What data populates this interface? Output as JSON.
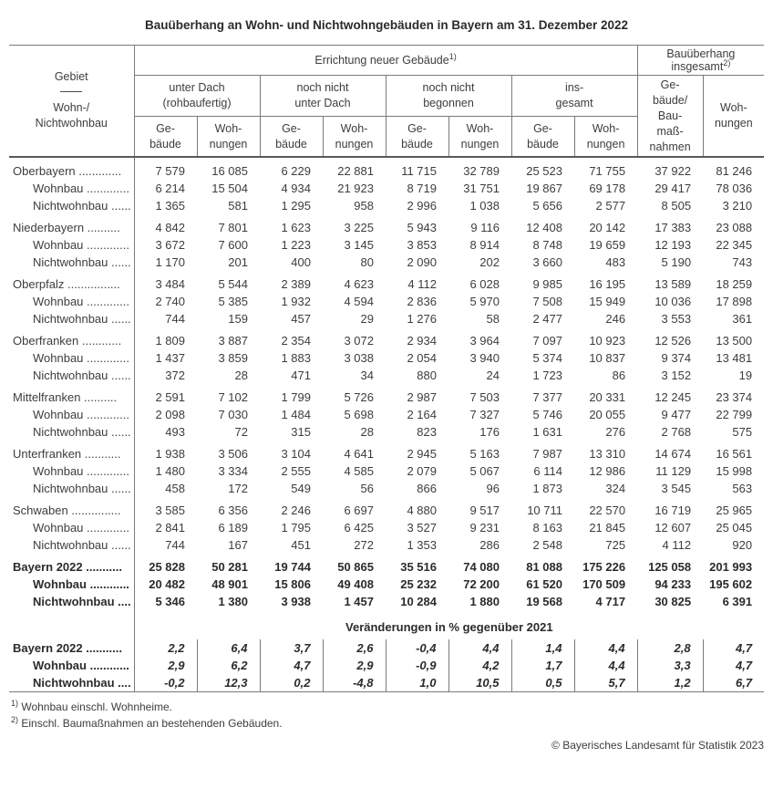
{
  "title": "Bauüberhang an Wohn- und Nichtwohngebäuden in Bayern am 31. Dezember 2022",
  "header": {
    "gebiet": "Gebiet",
    "gebiet_sub": "Wohn-/\nNichtwohnbau",
    "errichtung": "Errichtung neuer Gebäude",
    "fn1": "1)",
    "bau_line1": "Bauüberhang",
    "bau_line2": "insgesamt",
    "fn2": "2)",
    "subgroups": [
      "unter Dach\n(rohbaufertig)",
      "noch nicht\nunter Dach",
      "noch nicht\nbegonnen",
      "ins-\ngesamt"
    ],
    "col_gebaeude": "Ge-\nbäude",
    "col_wohnungen": "Woh-\nnungen",
    "col_gebaeude_baumassnahmen": "Ge-\nbäude/\nBau-\nmaß-\nnahmen"
  },
  "table": {
    "rows": [
      {
        "label": "Oberbayern .............",
        "indent": false,
        "bold": false,
        "gap": true,
        "values": [
          "7 579",
          "16 085",
          "6 229",
          "22 881",
          "11 715",
          "32 789",
          "25 523",
          "71 755",
          "37 922",
          "81 246"
        ]
      },
      {
        "label": "Wohnbau .............",
        "indent": true,
        "bold": false,
        "gap": false,
        "values": [
          "6 214",
          "15 504",
          "4 934",
          "21 923",
          "8 719",
          "31 751",
          "19 867",
          "69 178",
          "29 417",
          "78 036"
        ]
      },
      {
        "label": "Nichtwohnbau ......",
        "indent": true,
        "bold": false,
        "gap": false,
        "values": [
          "1 365",
          "581",
          "1 295",
          "958",
          "2 996",
          "1 038",
          "5 656",
          "2 577",
          "8 505",
          "3 210"
        ]
      },
      {
        "label": "Niederbayern ..........",
        "indent": false,
        "bold": false,
        "gap": true,
        "values": [
          "4 842",
          "7 801",
          "1 623",
          "3 225",
          "5 943",
          "9 116",
          "12 408",
          "20 142",
          "17 383",
          "23 088"
        ]
      },
      {
        "label": "Wohnbau .............",
        "indent": true,
        "bold": false,
        "gap": false,
        "values": [
          "3 672",
          "7 600",
          "1 223",
          "3 145",
          "3 853",
          "8 914",
          "8 748",
          "19 659",
          "12 193",
          "22 345"
        ]
      },
      {
        "label": "Nichtwohnbau ......",
        "indent": true,
        "bold": false,
        "gap": false,
        "values": [
          "1 170",
          "201",
          "400",
          "80",
          "2 090",
          "202",
          "3 660",
          "483",
          "5 190",
          "743"
        ]
      },
      {
        "label": "Oberpfalz ................",
        "indent": false,
        "bold": false,
        "gap": true,
        "values": [
          "3 484",
          "5 544",
          "2 389",
          "4 623",
          "4 112",
          "6 028",
          "9 985",
          "16 195",
          "13 589",
          "18 259"
        ]
      },
      {
        "label": "Wohnbau .............",
        "indent": true,
        "bold": false,
        "gap": false,
        "values": [
          "2 740",
          "5 385",
          "1 932",
          "4 594",
          "2 836",
          "5 970",
          "7 508",
          "15 949",
          "10 036",
          "17 898"
        ]
      },
      {
        "label": "Nichtwohnbau ......",
        "indent": true,
        "bold": false,
        "gap": false,
        "values": [
          "744",
          "159",
          "457",
          "29",
          "1 276",
          "58",
          "2 477",
          "246",
          "3 553",
          "361"
        ]
      },
      {
        "label": "Oberfranken ............",
        "indent": false,
        "bold": false,
        "gap": true,
        "values": [
          "1 809",
          "3 887",
          "2 354",
          "3 072",
          "2 934",
          "3 964",
          "7 097",
          "10 923",
          "12 526",
          "13 500"
        ]
      },
      {
        "label": "Wohnbau .............",
        "indent": true,
        "bold": false,
        "gap": false,
        "values": [
          "1 437",
          "3 859",
          "1 883",
          "3 038",
          "2 054",
          "3 940",
          "5 374",
          "10 837",
          "9 374",
          "13 481"
        ]
      },
      {
        "label": "Nichtwohnbau ......",
        "indent": true,
        "bold": false,
        "gap": false,
        "values": [
          "372",
          "28",
          "471",
          "34",
          "880",
          "24",
          "1 723",
          "86",
          "3 152",
          "19"
        ]
      },
      {
        "label": "Mittelfranken ..........",
        "indent": false,
        "bold": false,
        "gap": true,
        "values": [
          "2 591",
          "7 102",
          "1 799",
          "5 726",
          "2 987",
          "7 503",
          "7 377",
          "20 331",
          "12 245",
          "23 374"
        ]
      },
      {
        "label": "Wohnbau .............",
        "indent": true,
        "bold": false,
        "gap": false,
        "values": [
          "2 098",
          "7 030",
          "1 484",
          "5 698",
          "2 164",
          "7 327",
          "5 746",
          "20 055",
          "9 477",
          "22 799"
        ]
      },
      {
        "label": "Nichtwohnbau ......",
        "indent": true,
        "bold": false,
        "gap": false,
        "values": [
          "493",
          "72",
          "315",
          "28",
          "823",
          "176",
          "1 631",
          "276",
          "2 768",
          "575"
        ]
      },
      {
        "label": "Unterfranken ...........",
        "indent": false,
        "bold": false,
        "gap": true,
        "values": [
          "1 938",
          "3 506",
          "3 104",
          "4 641",
          "2 945",
          "5 163",
          "7 987",
          "13 310",
          "14 674",
          "16 561"
        ]
      },
      {
        "label": "Wohnbau .............",
        "indent": true,
        "bold": false,
        "gap": false,
        "values": [
          "1 480",
          "3 334",
          "2 555",
          "4 585",
          "2 079",
          "5 067",
          "6 114",
          "12 986",
          "11 129",
          "15 998"
        ]
      },
      {
        "label": "Nichtwohnbau ......",
        "indent": true,
        "bold": false,
        "gap": false,
        "values": [
          "458",
          "172",
          "549",
          "56",
          "866",
          "96",
          "1 873",
          "324",
          "3 545",
          "563"
        ]
      },
      {
        "label": "Schwaben ...............",
        "indent": false,
        "bold": false,
        "gap": true,
        "values": [
          "3 585",
          "6 356",
          "2 246",
          "6 697",
          "4 880",
          "9 517",
          "10 711",
          "22 570",
          "16 719",
          "25 965"
        ]
      },
      {
        "label": "Wohnbau .............",
        "indent": true,
        "bold": false,
        "gap": false,
        "values": [
          "2 841",
          "6 189",
          "1 795",
          "6 425",
          "3 527",
          "9 231",
          "8 163",
          "21 845",
          "12 607",
          "25 045"
        ]
      },
      {
        "label": "Nichtwohnbau ......",
        "indent": true,
        "bold": false,
        "gap": false,
        "values": [
          "744",
          "167",
          "451",
          "272",
          "1 353",
          "286",
          "2 548",
          "725",
          "4 112",
          "920"
        ]
      },
      {
        "label": "Bayern 2022 ...........",
        "indent": false,
        "bold": true,
        "gap": true,
        "values": [
          "25 828",
          "50 281",
          "19 744",
          "50 865",
          "35 516",
          "74 080",
          "81 088",
          "175 226",
          "125 058",
          "201 993"
        ]
      },
      {
        "label": "Wohnbau ............",
        "indent": true,
        "bold": true,
        "gap": false,
        "values": [
          "20 482",
          "48 901",
          "15 806",
          "49 408",
          "25 232",
          "72 200",
          "61 520",
          "170 509",
          "94 233",
          "195 602"
        ]
      },
      {
        "label": "Nichtwohnbau ....",
        "indent": true,
        "bold": true,
        "gap": false,
        "values": [
          "5 346",
          "1 380",
          "3 938",
          "1 457",
          "10 284",
          "1 880",
          "19 568",
          "4 717",
          "30 825",
          "6 391"
        ]
      }
    ]
  },
  "pct": {
    "title": "Veränderungen in % gegenüber 2021",
    "rows": [
      {
        "label": "Bayern 2022 ...........",
        "indent": false,
        "values": [
          "2,2",
          "6,4",
          "3,7",
          "2,6",
          "-0,4",
          "4,4",
          "1,4",
          "4,4",
          "2,8",
          "4,7"
        ]
      },
      {
        "label": "Wohnbau ............",
        "indent": true,
        "values": [
          "2,9",
          "6,2",
          "4,7",
          "2,9",
          "-0,9",
          "4,2",
          "1,7",
          "4,4",
          "3,3",
          "4,7"
        ]
      },
      {
        "label": "Nichtwohnbau ....",
        "indent": true,
        "values": [
          "-0,2",
          "12,3",
          "0,2",
          "-4,8",
          "1,0",
          "10,5",
          "0,5",
          "5,7",
          "1,2",
          "6,7"
        ]
      }
    ]
  },
  "footnotes": {
    "fn1_marker": "1)",
    "fn1_text": " Wohnbau einschl. Wohnheime.",
    "fn2_marker": "2)",
    "fn2_text": " Einschl. Baumaßnahmen an bestehenden Gebäuden."
  },
  "copyright": "© Bayerisches Landesamt für Statistik 2023"
}
